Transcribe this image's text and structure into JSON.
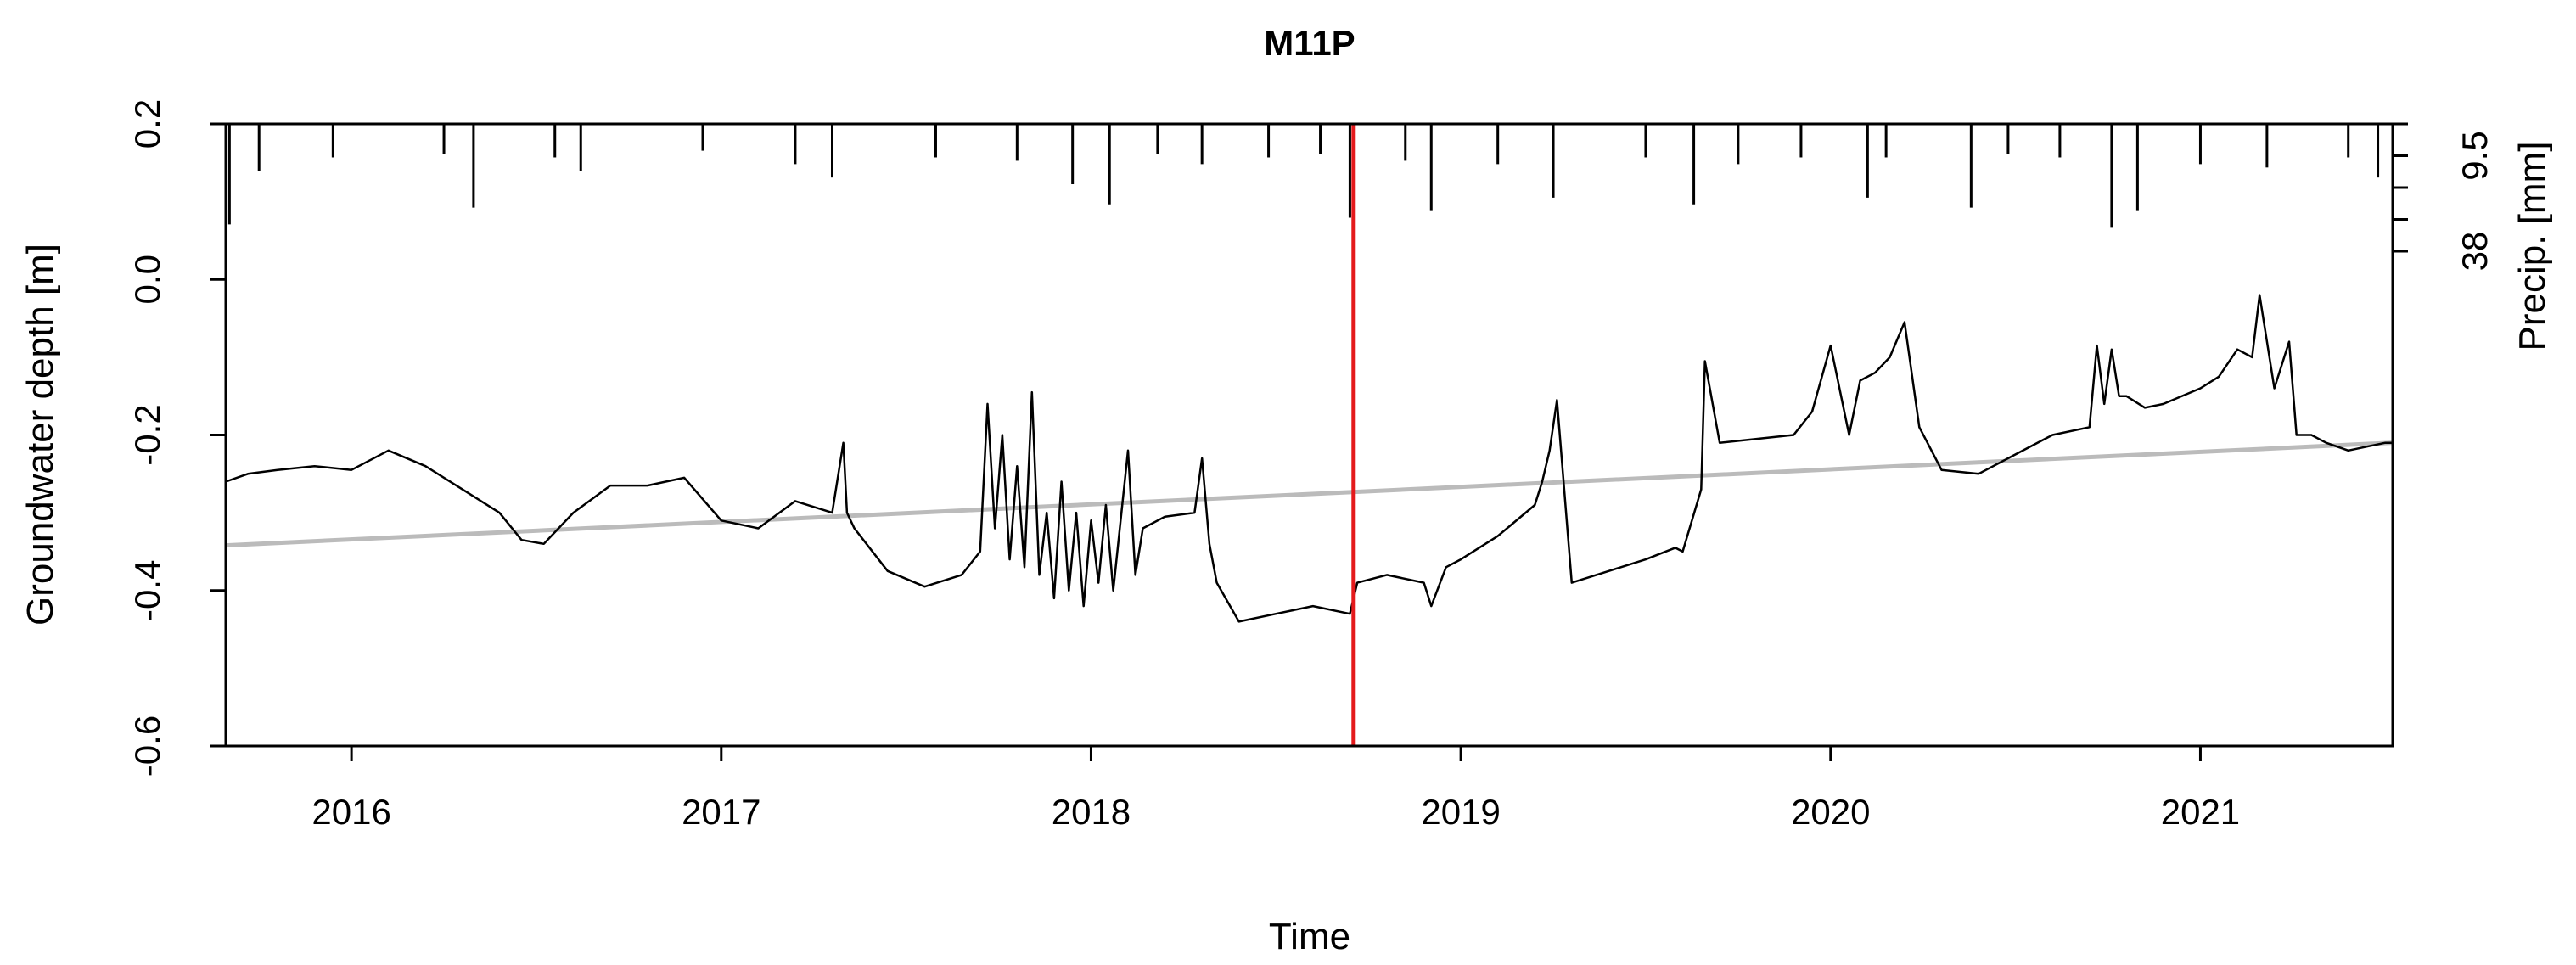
{
  "chart_data": {
    "type": "line",
    "title": "M11P",
    "xlabel": "Time",
    "ylabel": "Groundwater depth [m]",
    "ylabel_right": "Precip. [mm]",
    "xlim": [
      2015.66,
      2021.52
    ],
    "ylim": [
      -0.6,
      0.2
    ],
    "x_ticks": [
      2016,
      2017,
      2018,
      2019,
      2020,
      2021
    ],
    "x_tick_labels": [
      "2016",
      "2017",
      "2018",
      "2019",
      "2020",
      "2021"
    ],
    "y_ticks": [
      -0.6,
      -0.4,
      -0.2,
      0.0,
      0.2
    ],
    "y_tick_labels": [
      "-0.6",
      "-0.4",
      "-0.2",
      "0.0",
      "0.2"
    ],
    "precip_ticks_mm": [
      0,
      9.5,
      19,
      28.5,
      38
    ],
    "precip_tick_labels": [
      "",
      "9.5",
      "",
      "",
      "38"
    ],
    "precip_max_mm": 38,
    "grid": false,
    "marker_line": {
      "x": 2018.71,
      "color": "#e41a1c"
    },
    "trend": {
      "x": [
        2015.66,
        2021.52
      ],
      "y": [
        -0.342,
        -0.21
      ],
      "color": "#bbbbbb"
    },
    "series": [
      {
        "color": "#000000",
        "x": [
          2015.66,
          2015.72,
          2015.8,
          2015.9,
          2016.0,
          2016.1,
          2016.2,
          2016.3,
          2016.4,
          2016.46,
          2016.52,
          2016.6,
          2016.7,
          2016.8,
          2016.9,
          2017.0,
          2017.1,
          2017.2,
          2017.3,
          2017.33,
          2017.34,
          2017.36,
          2017.45,
          2017.55,
          2017.65,
          2017.7,
          2017.72,
          2017.74,
          2017.76,
          2017.78,
          2017.8,
          2017.82,
          2017.84,
          2017.86,
          2017.88,
          2017.9,
          2017.92,
          2017.94,
          2017.96,
          2017.98,
          2018.0,
          2018.02,
          2018.04,
          2018.06,
          2018.08,
          2018.1,
          2018.12,
          2018.14,
          2018.2,
          2018.28,
          2018.3,
          2018.32,
          2018.34,
          2018.4,
          2018.5,
          2018.6,
          2018.7,
          2018.72,
          2018.8,
          2018.9,
          2018.92,
          2018.96,
          2019.0,
          2019.1,
          2019.2,
          2019.22,
          2019.24,
          2019.26,
          2019.3,
          2019.4,
          2019.5,
          2019.58,
          2019.6,
          2019.65,
          2019.66,
          2019.7,
          2019.8,
          2019.9,
          2019.95,
          2020.0,
          2020.05,
          2020.08,
          2020.12,
          2020.16,
          2020.2,
          2020.24,
          2020.3,
          2020.4,
          2020.5,
          2020.6,
          2020.7,
          2020.72,
          2020.74,
          2020.76,
          2020.78,
          2020.8,
          2020.85,
          2020.9,
          2021.0,
          2021.05,
          2021.1,
          2021.14,
          2021.16,
          2021.2,
          2021.24,
          2021.26,
          2021.3,
          2021.34,
          2021.4,
          2021.5,
          2021.52
        ],
        "y": [
          -0.26,
          -0.25,
          -0.245,
          -0.24,
          -0.245,
          -0.22,
          -0.24,
          -0.27,
          -0.3,
          -0.335,
          -0.34,
          -0.3,
          -0.265,
          -0.265,
          -0.255,
          -0.31,
          -0.32,
          -0.285,
          -0.3,
          -0.21,
          -0.3,
          -0.32,
          -0.375,
          -0.395,
          -0.38,
          -0.35,
          -0.16,
          -0.32,
          -0.2,
          -0.36,
          -0.24,
          -0.37,
          -0.145,
          -0.38,
          -0.3,
          -0.41,
          -0.26,
          -0.4,
          -0.3,
          -0.42,
          -0.31,
          -0.39,
          -0.29,
          -0.4,
          -0.31,
          -0.22,
          -0.38,
          -0.32,
          -0.305,
          -0.3,
          -0.23,
          -0.34,
          -0.39,
          -0.44,
          -0.43,
          -0.42,
          -0.43,
          -0.39,
          -0.38,
          -0.39,
          -0.42,
          -0.37,
          -0.36,
          -0.33,
          -0.29,
          -0.26,
          -0.22,
          -0.155,
          -0.39,
          -0.375,
          -0.36,
          -0.345,
          -0.35,
          -0.27,
          -0.105,
          -0.21,
          -0.205,
          -0.2,
          -0.17,
          -0.085,
          -0.2,
          -0.13,
          -0.12,
          -0.1,
          -0.055,
          -0.19,
          -0.245,
          -0.25,
          -0.225,
          -0.2,
          -0.19,
          -0.085,
          -0.16,
          -0.09,
          -0.15,
          -0.15,
          -0.165,
          -0.16,
          -0.14,
          -0.125,
          -0.09,
          -0.1,
          -0.02,
          -0.14,
          -0.08,
          -0.2,
          -0.2,
          -0.21,
          -0.22,
          -0.21,
          -0.21
        ]
      }
    ],
    "precip_events": {
      "x": [
        2015.67,
        2015.75,
        2015.95,
        2016.25,
        2016.33,
        2016.55,
        2016.62,
        2016.95,
        2017.2,
        2017.3,
        2017.58,
        2017.8,
        2017.95,
        2018.05,
        2018.18,
        2018.3,
        2018.48,
        2018.62,
        2018.7,
        2018.85,
        2018.92,
        2019.1,
        2019.25,
        2019.5,
        2019.63,
        2019.75,
        2019.92,
        2020.1,
        2020.15,
        2020.38,
        2020.48,
        2020.62,
        2020.76,
        2020.83,
        2021.0,
        2021.18,
        2021.4,
        2021.48
      ],
      "mm": [
        30,
        14,
        10,
        9,
        25,
        10,
        14,
        8,
        12,
        16,
        10,
        11,
        18,
        24,
        9,
        12,
        10,
        9,
        28,
        11,
        26,
        12,
        22,
        10,
        24,
        12,
        10,
        22,
        10,
        25,
        9,
        10,
        31,
        26,
        12,
        13,
        10,
        16
      ]
    }
  }
}
